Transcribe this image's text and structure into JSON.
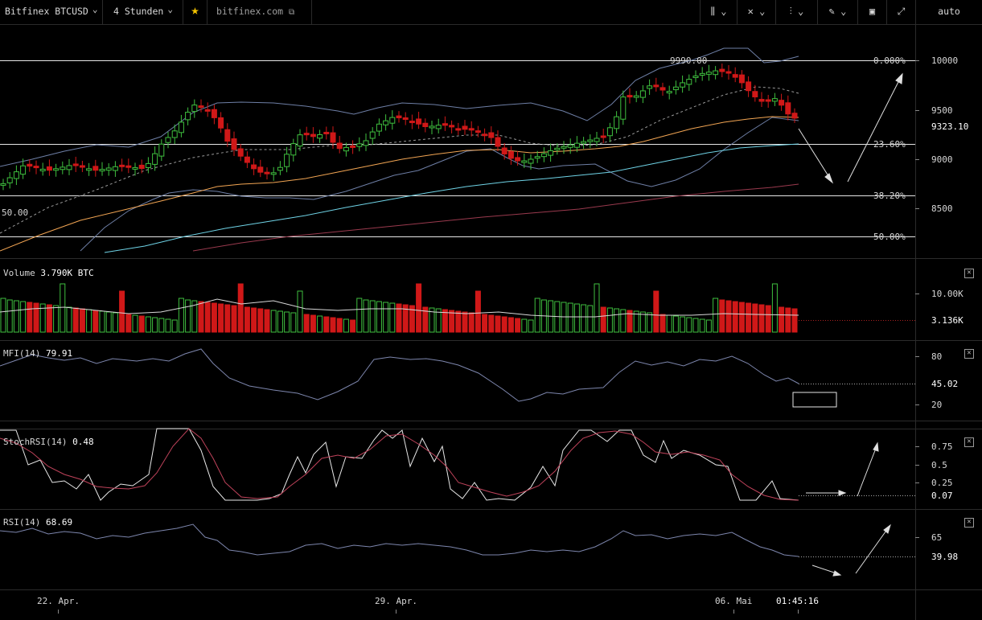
{
  "toolbar": {
    "symbol": "Bitfinex BTCUSD",
    "interval": "4 Stunden",
    "watermark": "bitfinex.com",
    "scale_mode": "auto",
    "icons": [
      "bar-style-icon",
      "indicators-icon",
      "compare-icon",
      "draw-icon",
      "screenshot-icon",
      "fullscreen-icon"
    ]
  },
  "price_axis": {
    "ticks": [
      "10000",
      "9500",
      "9000",
      "8500"
    ],
    "current": "9323.10",
    "fib_levels": [
      "0.000%",
      "23.60%",
      "38.20%",
      "50.00%"
    ],
    "high_label": "9990.00",
    "low_label": "50.00"
  },
  "volume": {
    "label": "Volume",
    "value": "3.790K BTC",
    "ticks": [
      "10.00K"
    ],
    "current": "3.136K"
  },
  "mfi": {
    "label": "MFI(14)",
    "value": "79.91",
    "ticks": [
      "80",
      "20"
    ],
    "current": "45.02"
  },
  "stochrsi": {
    "label": "StochRSI(14)",
    "value": "0.48",
    "ticks": [
      "0.75",
      "0.5",
      "0.25"
    ],
    "current": "0.07"
  },
  "rsi": {
    "label": "RSI(14)",
    "value": "68.69",
    "ticks": [
      "65"
    ],
    "current": "39.98"
  },
  "time_axis": {
    "ticks": [
      "22. Apr.",
      "29. Apr.",
      "06. Mai"
    ],
    "cursor_time": "01:45:16"
  },
  "colors": {
    "up": "#3fbf3f",
    "down": "#d01818",
    "background": "#000000",
    "grid_line": "#e6e6e6"
  }
}
